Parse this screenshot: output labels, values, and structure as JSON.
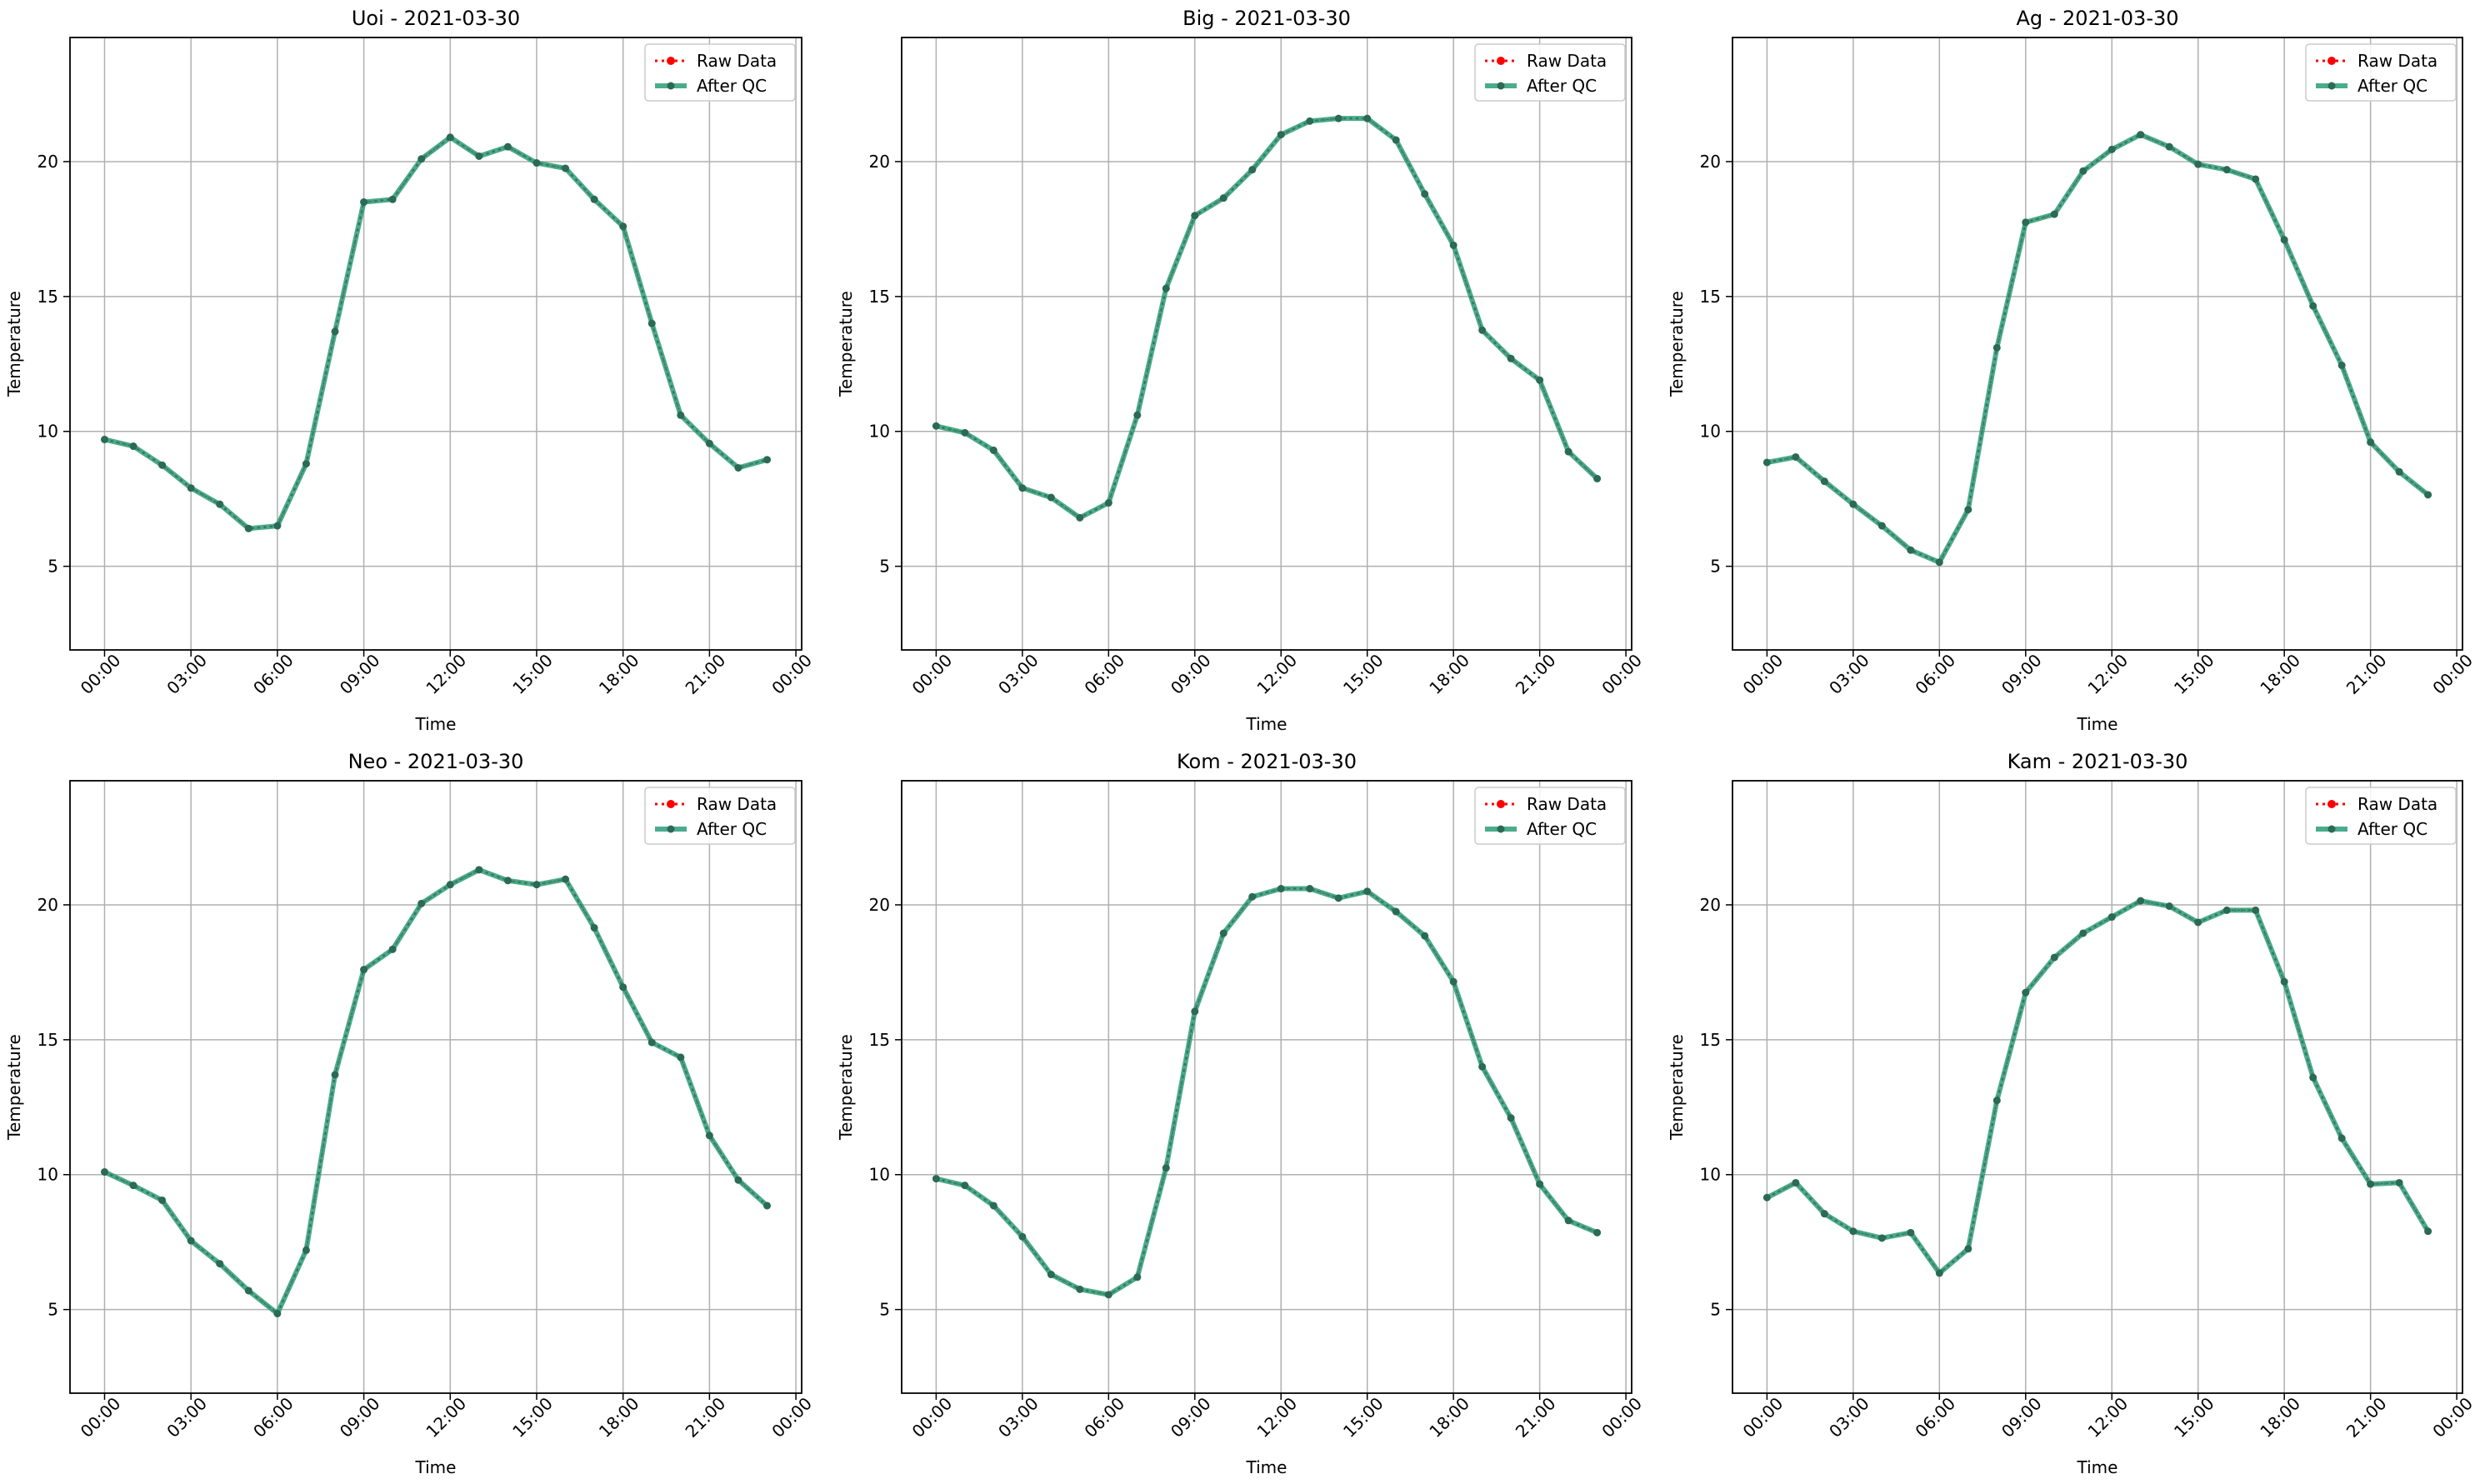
{
  "colors": {
    "raw": "#ff0000",
    "qc": "#2a9d78",
    "marker": "#2b6a55",
    "grid": "#b0b0b0",
    "axis": "#000000"
  },
  "shared": {
    "xlabel": "Time",
    "ylabel": "Temperature",
    "legend": [
      "Raw Data",
      "After QC"
    ],
    "x_ticks": [
      "00:00",
      "03:00",
      "06:00",
      "09:00",
      "12:00",
      "15:00",
      "18:00",
      "21:00",
      "00:00"
    ],
    "y_ticks": [
      5,
      10,
      15,
      20
    ]
  },
  "chart_data": [
    {
      "type": "line",
      "title": "Uoi - 2021-03-30",
      "xlabel": "Time",
      "ylabel": "Temperature",
      "x_unit": "hour of day",
      "xlim": [
        -1.2,
        24.2
      ],
      "ylim": [
        1.9,
        24.6
      ],
      "grid": true,
      "legend_position": "top-right",
      "x": [
        0,
        1,
        2,
        3,
        4,
        5,
        6,
        7,
        8,
        9,
        10,
        11,
        12,
        13,
        14,
        15,
        16,
        17,
        18,
        19,
        20,
        21,
        22,
        23
      ],
      "series": [
        {
          "name": "Raw Data",
          "values": [
            9.7,
            9.45,
            8.75,
            7.9,
            7.3,
            6.4,
            6.5,
            8.8,
            13.7,
            18.5,
            18.6,
            20.1,
            20.9,
            20.2,
            20.55,
            19.95,
            19.75,
            18.6,
            17.6,
            14.0,
            10.6,
            9.55,
            8.65,
            8.95
          ]
        },
        {
          "name": "After QC",
          "values": [
            9.7,
            9.45,
            8.75,
            7.9,
            7.3,
            6.4,
            6.5,
            8.8,
            13.7,
            18.5,
            18.6,
            20.1,
            20.9,
            20.2,
            20.55,
            19.95,
            19.75,
            18.6,
            17.6,
            14.0,
            10.6,
            9.55,
            8.65,
            8.95
          ]
        }
      ]
    },
    {
      "type": "line",
      "title": "Big - 2021-03-30",
      "xlabel": "Time",
      "ylabel": "Temperature",
      "x_unit": "hour of day",
      "xlim": [
        -1.2,
        24.2
      ],
      "ylim": [
        1.9,
        24.6
      ],
      "grid": true,
      "legend_position": "top-right",
      "x": [
        0,
        1,
        2,
        3,
        4,
        5,
        6,
        7,
        8,
        9,
        10,
        11,
        12,
        13,
        14,
        15,
        16,
        17,
        18,
        19,
        20,
        21,
        22,
        23
      ],
      "series": [
        {
          "name": "Raw Data",
          "values": [
            10.2,
            9.95,
            9.3,
            7.9,
            7.55,
            6.8,
            7.35,
            10.6,
            15.3,
            18.0,
            18.65,
            19.7,
            21.0,
            21.5,
            21.6,
            21.6,
            20.8,
            18.8,
            16.9,
            13.75,
            12.7,
            11.9,
            9.25,
            8.25
          ]
        },
        {
          "name": "After QC",
          "values": [
            10.2,
            9.95,
            9.3,
            7.9,
            7.55,
            6.8,
            7.35,
            10.6,
            15.3,
            18.0,
            18.65,
            19.7,
            21.0,
            21.5,
            21.6,
            21.6,
            20.8,
            18.8,
            16.9,
            13.75,
            12.7,
            11.9,
            9.25,
            8.25
          ]
        }
      ]
    },
    {
      "type": "line",
      "title": "Ag - 2021-03-30",
      "xlabel": "Time",
      "ylabel": "Temperature",
      "x_unit": "hour of day",
      "xlim": [
        -1.2,
        24.2
      ],
      "ylim": [
        1.9,
        24.6
      ],
      "grid": true,
      "legend_position": "top-right",
      "x": [
        0,
        1,
        2,
        3,
        4,
        5,
        6,
        7,
        8,
        9,
        10,
        11,
        12,
        13,
        14,
        15,
        16,
        17,
        18,
        19,
        20,
        21,
        22,
        23
      ],
      "series": [
        {
          "name": "Raw Data",
          "values": [
            8.85,
            9.05,
            8.15,
            7.3,
            6.5,
            5.6,
            5.15,
            7.1,
            13.1,
            17.75,
            18.05,
            19.65,
            20.45,
            21.0,
            20.55,
            19.9,
            19.7,
            19.35,
            17.1,
            14.65,
            12.45,
            9.6,
            8.5,
            7.65
          ]
        },
        {
          "name": "After QC",
          "values": [
            8.85,
            9.05,
            8.15,
            7.3,
            6.5,
            5.6,
            5.15,
            7.1,
            13.1,
            17.75,
            18.05,
            19.65,
            20.45,
            21.0,
            20.55,
            19.9,
            19.7,
            19.35,
            17.1,
            14.65,
            12.45,
            9.6,
            8.5,
            7.65
          ]
        }
      ]
    },
    {
      "type": "line",
      "title": "Neo - 2021-03-30",
      "xlabel": "Time",
      "ylabel": "Temperature",
      "x_unit": "hour of day",
      "xlim": [
        -1.2,
        24.2
      ],
      "ylim": [
        1.9,
        24.6
      ],
      "grid": true,
      "legend_position": "top-right",
      "x": [
        0,
        1,
        2,
        3,
        4,
        5,
        6,
        7,
        8,
        9,
        10,
        11,
        12,
        13,
        14,
        15,
        16,
        17,
        18,
        19,
        20,
        21,
        22,
        23
      ],
      "series": [
        {
          "name": "Raw Data",
          "values": [
            10.1,
            9.6,
            9.05,
            7.55,
            6.7,
            5.7,
            4.85,
            7.2,
            13.7,
            17.6,
            18.35,
            20.05,
            20.75,
            21.3,
            20.9,
            20.75,
            20.95,
            19.15,
            16.95,
            14.9,
            14.35,
            11.45,
            9.8,
            8.85
          ]
        },
        {
          "name": "After QC",
          "values": [
            10.1,
            9.6,
            9.05,
            7.55,
            6.7,
            5.7,
            4.85,
            7.2,
            13.7,
            17.6,
            18.35,
            20.05,
            20.75,
            21.3,
            20.9,
            20.75,
            20.95,
            19.15,
            16.95,
            14.9,
            14.35,
            11.45,
            9.8,
            8.85
          ]
        }
      ]
    },
    {
      "type": "line",
      "title": "Kom - 2021-03-30",
      "xlabel": "Time",
      "ylabel": "Temperature",
      "x_unit": "hour of day",
      "xlim": [
        -1.2,
        24.2
      ],
      "ylim": [
        1.9,
        24.6
      ],
      "grid": true,
      "legend_position": "top-right",
      "x": [
        0,
        1,
        2,
        3,
        4,
        5,
        6,
        7,
        8,
        9,
        10,
        11,
        12,
        13,
        14,
        15,
        16,
        17,
        18,
        19,
        20,
        21,
        22,
        23
      ],
      "series": [
        {
          "name": "Raw Data",
          "values": [
            9.85,
            9.6,
            8.85,
            7.7,
            6.3,
            5.75,
            5.55,
            6.2,
            10.25,
            16.05,
            18.95,
            20.3,
            20.6,
            20.6,
            20.25,
            20.5,
            19.75,
            18.85,
            17.15,
            14.0,
            12.1,
            9.65,
            8.3,
            7.85
          ]
        },
        {
          "name": "After QC",
          "values": [
            9.85,
            9.6,
            8.85,
            7.7,
            6.3,
            5.75,
            5.55,
            6.2,
            10.25,
            16.05,
            18.95,
            20.3,
            20.6,
            20.6,
            20.25,
            20.5,
            19.75,
            18.85,
            17.15,
            14.0,
            12.1,
            9.65,
            8.3,
            7.85
          ]
        }
      ]
    },
    {
      "type": "line",
      "title": "Kam - 2021-03-30",
      "xlabel": "Time",
      "ylabel": "Temperature",
      "x_unit": "hour of day",
      "xlim": [
        -1.2,
        24.2
      ],
      "ylim": [
        1.9,
        24.6
      ],
      "grid": true,
      "legend_position": "top-right",
      "x": [
        0,
        1,
        2,
        3,
        4,
        5,
        6,
        7,
        8,
        9,
        10,
        11,
        12,
        13,
        14,
        15,
        16,
        17,
        18,
        19,
        20,
        21,
        22,
        23
      ],
      "series": [
        {
          "name": "Raw Data",
          "values": [
            9.15,
            9.7,
            8.55,
            7.9,
            7.65,
            7.85,
            6.35,
            7.25,
            12.75,
            16.75,
            18.05,
            18.95,
            19.55,
            20.15,
            19.95,
            19.35,
            19.8,
            19.8,
            17.15,
            13.6,
            11.35,
            9.65,
            9.7,
            7.9
          ]
        },
        {
          "name": "After QC",
          "values": [
            9.15,
            9.7,
            8.55,
            7.9,
            7.65,
            7.85,
            6.35,
            7.25,
            12.75,
            16.75,
            18.05,
            18.95,
            19.55,
            20.15,
            19.95,
            19.35,
            19.8,
            19.8,
            17.15,
            13.6,
            11.35,
            9.65,
            9.7,
            7.9
          ]
        }
      ]
    }
  ]
}
